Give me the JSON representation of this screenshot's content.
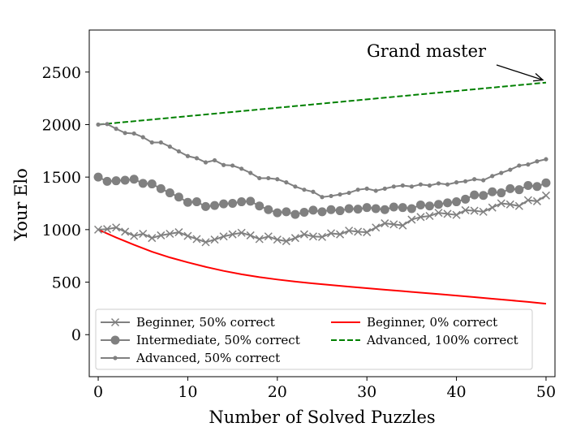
{
  "chart_data": {
    "type": "line",
    "title": "",
    "xlabel": "Number of Solved Puzzles",
    "ylabel": "Your Elo",
    "xlim": [
      -1,
      51
    ],
    "ylim": [
      -400,
      2900
    ],
    "xticks": [
      0,
      10,
      20,
      30,
      40,
      50
    ],
    "yticks": [
      0,
      500,
      1000,
      1500,
      2000,
      2500
    ],
    "grid": false,
    "legend_position": "lower-left",
    "annotation": {
      "text": "Grand master",
      "points_to": [
        50,
        2440
      ]
    },
    "series": [
      {
        "name": "Beginner, 50% correct",
        "color": "#808080",
        "marker": "x",
        "line_style": "solid",
        "x": [
          0,
          1,
          2,
          3,
          4,
          5,
          6,
          7,
          8,
          9,
          10,
          11,
          12,
          13,
          14,
          15,
          16,
          17,
          18,
          19,
          20,
          21,
          22,
          23,
          24,
          25,
          26,
          27,
          28,
          29,
          30,
          31,
          32,
          33,
          34,
          35,
          36,
          37,
          38,
          39,
          40,
          41,
          42,
          43,
          44,
          45,
          46,
          47,
          48,
          49,
          50
        ],
        "y": [
          1000,
          1005,
          1020,
          980,
          940,
          960,
          920,
          945,
          960,
          975,
          940,
          910,
          880,
          905,
          935,
          955,
          970,
          945,
          910,
          935,
          905,
          890,
          920,
          955,
          935,
          930,
          965,
          955,
          990,
          980,
          975,
          1020,
          1060,
          1050,
          1040,
          1095,
          1120,
          1130,
          1160,
          1150,
          1140,
          1185,
          1180,
          1170,
          1210,
          1250,
          1240,
          1225,
          1280,
          1270,
          1325
        ]
      },
      {
        "name": "Intermediate, 50% correct",
        "color": "#808080",
        "marker": "o",
        "line_style": "solid",
        "x": [
          0,
          1,
          2,
          3,
          4,
          5,
          6,
          7,
          8,
          9,
          10,
          11,
          12,
          13,
          14,
          15,
          16,
          17,
          18,
          19,
          20,
          21,
          22,
          23,
          24,
          25,
          26,
          27,
          28,
          29,
          30,
          31,
          32,
          33,
          34,
          35,
          36,
          37,
          38,
          39,
          40,
          41,
          42,
          43,
          44,
          45,
          46,
          47,
          48,
          49,
          50
        ],
        "y": [
          1500,
          1460,
          1465,
          1470,
          1480,
          1440,
          1435,
          1390,
          1350,
          1310,
          1260,
          1265,
          1220,
          1230,
          1245,
          1250,
          1265,
          1270,
          1225,
          1190,
          1160,
          1170,
          1145,
          1165,
          1185,
          1170,
          1190,
          1180,
          1200,
          1195,
          1210,
          1200,
          1190,
          1215,
          1210,
          1200,
          1235,
          1225,
          1240,
          1255,
          1265,
          1290,
          1330,
          1325,
          1360,
          1350,
          1390,
          1380,
          1420,
          1410,
          1445
        ]
      },
      {
        "name": "Advanced, 50% correct",
        "color": "#808080",
        "marker": ".",
        "line_style": "solid",
        "x": [
          0,
          1,
          2,
          3,
          4,
          5,
          6,
          7,
          8,
          9,
          10,
          11,
          12,
          13,
          14,
          15,
          16,
          17,
          18,
          19,
          20,
          21,
          22,
          23,
          24,
          25,
          26,
          27,
          28,
          29,
          30,
          31,
          32,
          33,
          34,
          35,
          36,
          37,
          38,
          39,
          40,
          41,
          42,
          43,
          44,
          45,
          46,
          47,
          48,
          49,
          50
        ],
        "y": [
          2000,
          2005,
          1960,
          1920,
          1915,
          1880,
          1830,
          1830,
          1790,
          1745,
          1700,
          1680,
          1640,
          1660,
          1615,
          1610,
          1580,
          1540,
          1490,
          1490,
          1480,
          1450,
          1410,
          1380,
          1360,
          1310,
          1320,
          1335,
          1350,
          1380,
          1390,
          1370,
          1390,
          1410,
          1420,
          1410,
          1430,
          1420,
          1440,
          1430,
          1450,
          1460,
          1480,
          1470,
          1510,
          1540,
          1570,
          1610,
          1620,
          1650,
          1670
        ]
      },
      {
        "name": "Beginner, 0% correct",
        "color": "#ff0000",
        "marker": "none",
        "line_style": "solid",
        "x": [
          0,
          2,
          4,
          6,
          8,
          10,
          12,
          14,
          16,
          18,
          20,
          22,
          24,
          26,
          28,
          30,
          32,
          34,
          36,
          38,
          40,
          42,
          44,
          46,
          48,
          50
        ],
        "y": [
          1000,
          925,
          855,
          790,
          735,
          688,
          645,
          607,
          575,
          548,
          525,
          505,
          488,
          472,
          457,
          442,
          428,
          414,
          400,
          386,
          372,
          357,
          342,
          327,
          312,
          295
        ]
      },
      {
        "name": "Advanced, 100% correct",
        "color": "#008000",
        "marker": "none",
        "line_style": "dashed",
        "x": [
          0,
          50
        ],
        "y": [
          2000,
          2400
        ]
      }
    ]
  }
}
